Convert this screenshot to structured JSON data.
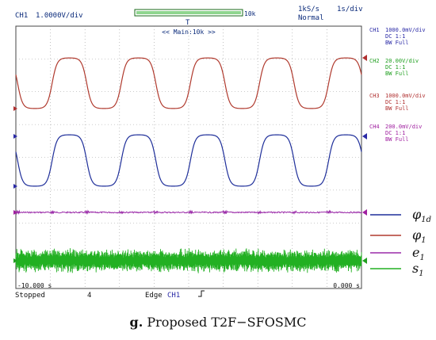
{
  "scope_header": {
    "channel_label": "CH1",
    "scale": "1.0000V/div",
    "record_length": "10k",
    "trigger_marker": "T",
    "sample_rate": "1kS/s",
    "mode": "Normal",
    "timebase": "1s/div",
    "zoom_label": "<< Main:10k >>"
  },
  "channels": [
    {
      "name": "CH1",
      "scale": "1000.0mV/div",
      "coupling": "DC  1:1",
      "bandwidth": "BW Full",
      "color": "#2a2aa6"
    },
    {
      "name": "CH2",
      "scale": "20.00V/div",
      "coupling": "DC  1:1",
      "bandwidth": "BW Full",
      "color": "#22a022"
    },
    {
      "name": "CH3",
      "scale": "1000.0mV/div",
      "coupling": "DC  1:1",
      "bandwidth": "BW Full",
      "color": "#b03030"
    },
    {
      "name": "CH4",
      "scale": "200.0mV/div",
      "coupling": "DC  1:1",
      "bandwidth": "BW Full",
      "color": "#a020a0"
    }
  ],
  "footer": {
    "time_start": "-10.000 s",
    "time_end": "0.000 s",
    "status": "Stopped",
    "count": "4",
    "trigger_type": "Edge",
    "trigger_source": "CH1",
    "trigger_slope": "rising-edge-icon"
  },
  "caption": {
    "prefix": "g.",
    "text": "Proposed T2F−SFOSMC"
  },
  "chart_data": {
    "type": "line",
    "x_range": [
      -10,
      0
    ],
    "x_unit": "s",
    "grid": true,
    "legend_position": "right",
    "series": [
      {
        "name": "φ1d",
        "color": "#1f2f9a",
        "shape": "square-wave",
        "period_s": 2.0,
        "low": 0,
        "high": 1,
        "transitions": "smoothed"
      },
      {
        "name": "φ1",
        "color": "#b03a2e",
        "shape": "square-wave",
        "period_s": 2.0,
        "low": 0,
        "high": 1,
        "transitions": "smoothed"
      },
      {
        "name": "e1",
        "color": "#9a2aa8",
        "shape": "near-zero-ripple"
      },
      {
        "name": "s1",
        "color": "#22b022",
        "shape": "noise-band"
      }
    ]
  },
  "legend": [
    {
      "symbol": "φ",
      "sub": "1d",
      "color": "#1f2f9a"
    },
    {
      "symbol": "φ",
      "sub": "1",
      "color": "#b03a2e"
    },
    {
      "symbol": "e",
      "sub": "1",
      "color": "#9a2aa8"
    },
    {
      "symbol": "s",
      "sub": "1",
      "color": "#22b022"
    }
  ]
}
